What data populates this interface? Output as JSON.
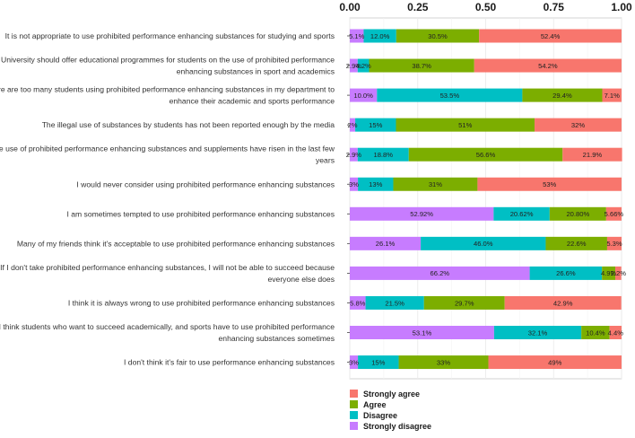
{
  "chart_data": {
    "type": "bar",
    "orientation": "horizontal",
    "stacked": true,
    "xlim": [
      0,
      1
    ],
    "x_ticks": [
      "0.00",
      "0.25",
      "0.50",
      "0.75",
      "1.00"
    ],
    "x_tick_values": [
      0,
      0.25,
      0.5,
      0.75,
      1.0
    ],
    "categories": [
      "It is not appropriate to use prohibited performance enhancing substances for studying and sports",
      "University should offer educational programmes for students on the use of prohibited performance enhancing substances in sport and academics",
      "There are too many students using prohibited performance enhancing substances in my department to enhance their academic and sports performance",
      "The illegal use of substances by students has not been reported enough by the media",
      "The use of prohibited performance enhancing substances and supplements have risen in the last few years",
      "I would never consider using prohibited performance enhancing substances",
      "I am sometimes tempted to use prohibited performance enhancing substances",
      "Many of my friends think it's acceptable to use prohibited performance enhancing substances",
      "If I don't take prohibited performance enhancing substances, I will not be able to succeed because everyone else does",
      "I think it is always wrong to use prohibited performance enhancing substances",
      "I think students who want to succeed academically, and sports have to use prohibited performance enhancing substances sometimes",
      "I don't think it's fair to use performance enhancing substances"
    ],
    "category_lines": [
      [
        "It is not appropriate to use prohibited performance enhancing substances for studying and sports"
      ],
      [
        "University should offer educational programmes for students on the use of prohibited performance",
        "enhancing substances in sport and academics"
      ],
      [
        "There are too many students using prohibited performance enhancing substances in my department to",
        "enhance their academic and sports performance"
      ],
      [
        "The illegal use of substances by students has not been reported enough by the media"
      ],
      [
        "The use of prohibited performance enhancing substances and supplements have risen in the last few",
        "years"
      ],
      [
        "I would never consider using prohibited performance enhancing substances"
      ],
      [
        "I am sometimes tempted to use prohibited performance enhancing substances"
      ],
      [
        "Many of my friends think it's acceptable to use prohibited performance enhancing substances"
      ],
      [
        "If I don't take prohibited performance enhancing substances, I will not be able to succeed because",
        "everyone else does"
      ],
      [
        "I think it is always wrong to use prohibited performance enhancing substances"
      ],
      [
        "I think students who want to succeed academically, and sports have to use prohibited performance",
        "enhancing substances sometimes"
      ],
      [
        "I don't think it's fair to use performance enhancing substances"
      ]
    ],
    "series": [
      {
        "name": "Strongly disagree",
        "color": "#c77cff",
        "values": [
          0.051,
          0.029,
          0.1,
          0.02,
          0.029,
          0.03,
          0.5292,
          0.261,
          0.662,
          0.058,
          0.531,
          0.03
        ],
        "labels": [
          "5.1%",
          "2.9%",
          "10.0%",
          "2%",
          "2.9%",
          "3%",
          "52.92%",
          "26.1%",
          "66.2%",
          "5.8%",
          "53.1%",
          "3%"
        ]
      },
      {
        "name": "Disagree",
        "color": "#00bfc4",
        "values": [
          0.12,
          0.042,
          0.535,
          0.15,
          0.188,
          0.13,
          0.2062,
          0.46,
          0.266,
          0.215,
          0.321,
          0.15
        ],
        "labels": [
          "12.0%",
          "4.2%",
          "53.5%",
          "15%",
          "18.8%",
          "13%",
          "20.62%",
          "46.0%",
          "26.6%",
          "21.5%",
          "32.1%",
          "15%"
        ]
      },
      {
        "name": "Agree",
        "color": "#7cae00",
        "values": [
          0.305,
          0.387,
          0.294,
          0.51,
          0.566,
          0.31,
          0.208,
          0.226,
          0.049,
          0.297,
          0.104,
          0.33
        ],
        "labels": [
          "30.5%",
          "38.7%",
          "29.4%",
          "51%",
          "56.6%",
          "31%",
          "20.80%",
          "22.6%",
          "4.9%",
          "29.7%",
          "10.4%",
          "33%"
        ]
      },
      {
        "name": "Strongly agree",
        "color": "#f8766d",
        "values": [
          0.524,
          0.542,
          0.071,
          0.32,
          0.219,
          0.53,
          0.0566,
          0.053,
          0.022,
          0.429,
          0.044,
          0.49
        ],
        "labels": [
          "52.4%",
          "54.2%",
          "7.1%",
          "32%",
          "21.9%",
          "53%",
          "5.66%",
          "5.3%",
          "2.2%",
          "42.9%",
          "4.4%",
          "49%"
        ]
      }
    ],
    "legend_order": [
      "Strongly agree",
      "Agree",
      "Disagree",
      "Strongly disagree"
    ],
    "legend_position": "bottom",
    "title": "",
    "xlabel": "",
    "ylabel": ""
  }
}
